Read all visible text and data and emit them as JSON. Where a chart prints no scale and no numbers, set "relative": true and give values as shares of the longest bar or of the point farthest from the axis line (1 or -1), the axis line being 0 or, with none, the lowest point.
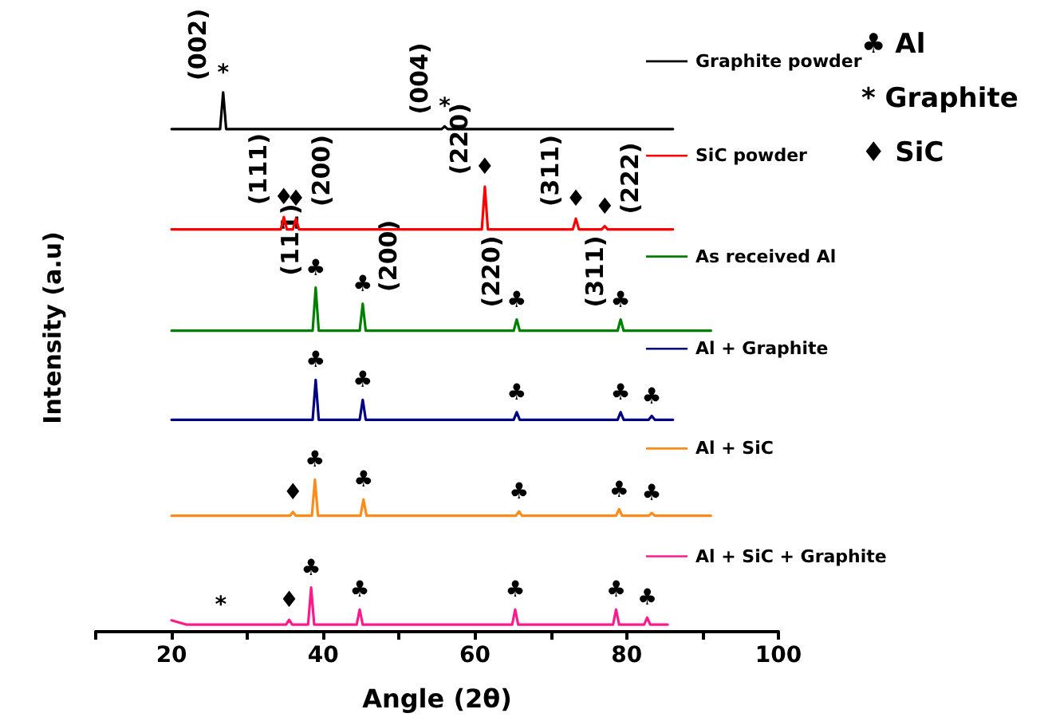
{
  "chart_data": {
    "type": "line",
    "relative": true,
    "xlabel": "Angle (2θ)",
    "ylabel": "Intensity (a.u)",
    "xlim": [
      10,
      100
    ],
    "xticks": [
      {
        "value": 10,
        "label": null
      },
      20,
      {
        "value": 30,
        "label": null
      },
      40,
      {
        "value": 50,
        "label": null
      },
      60,
      {
        "value": 70,
        "label": null
      },
      80,
      {
        "value": 90,
        "label": null
      },
      100
    ],
    "tick_labels": "x",
    "legend": "right",
    "series": [
      {
        "name": "Graphite powder",
        "color": "#000000",
        "x": [
          20,
          26.4,
          26.8,
          27.2,
          55.6,
          56.0,
          56.4,
          86.1
        ],
        "values": [
          0.932,
          0.932,
          1,
          0.932,
          0.932,
          0.937,
          0.932,
          0.932
        ]
      },
      {
        "name": "SiC powder",
        "color": "#ff0000",
        "x": [
          20,
          34.4,
          34.8,
          35.2,
          36.0,
          36.4,
          36.8,
          60.9,
          61.3,
          61.7,
          72.9,
          73.3,
          73.7,
          76.7,
          77.1,
          77.5,
          86.1
        ],
        "values": [
          0.746,
          0.746,
          0.769,
          0.746,
          0.746,
          0.766,
          0.746,
          0.746,
          0.825,
          0.746,
          0.746,
          0.766,
          0.746,
          0.746,
          0.752,
          0.746,
          0.746
        ]
      },
      {
        "name": "As received Al",
        "color": "#008000",
        "x": [
          20,
          38.6,
          39.0,
          39.4,
          44.8,
          45.2,
          45.6,
          65.1,
          65.5,
          65.9,
          78.8,
          79.2,
          79.6,
          91.1
        ],
        "values": [
          0.558,
          0.558,
          0.638,
          0.558,
          0.558,
          0.608,
          0.558,
          0.558,
          0.579,
          0.558,
          0.558,
          0.579,
          0.558,
          0.558
        ]
      },
      {
        "name": "Al + Graphite",
        "color": "#000080",
        "x": [
          20,
          38.6,
          39.0,
          39.4,
          44.8,
          45.2,
          45.6,
          65.1,
          65.5,
          65.9,
          78.8,
          79.2,
          79.6,
          82.9,
          83.3,
          83.7,
          86.1
        ],
        "values": [
          0.393,
          0.393,
          0.467,
          0.393,
          0.393,
          0.43,
          0.393,
          0.393,
          0.407,
          0.393,
          0.393,
          0.407,
          0.393,
          0.393,
          0.4,
          0.393,
          0.393
        ]
      },
      {
        "name": "Al + SiC",
        "color": "#ff8c1a",
        "x": [
          20,
          35.6,
          36.0,
          36.4,
          38.5,
          38.9,
          39.3,
          44.9,
          45.3,
          45.7,
          65.4,
          65.8,
          66.2,
          78.6,
          79.0,
          79.4,
          82.9,
          83.3,
          83.7,
          91.1
        ],
        "values": [
          0.215,
          0.215,
          0.222,
          0.215,
          0.215,
          0.282,
          0.215,
          0.215,
          0.245,
          0.215,
          0.215,
          0.223,
          0.215,
          0.215,
          0.227,
          0.215,
          0.215,
          0.22,
          0.215,
          0.215
        ]
      },
      {
        "name": "Al + SiC + Graphite",
        "color": "#ff1a8c",
        "x": [
          20,
          22,
          35.1,
          35.5,
          35.9,
          38.0,
          38.4,
          38.8,
          44.4,
          44.8,
          45.2,
          64.9,
          65.3,
          65.7,
          78.2,
          78.6,
          79.0,
          82.3,
          82.7,
          83.1,
          85.4
        ],
        "values": [
          0.021,
          0.013,
          0.013,
          0.022,
          0.013,
          0.013,
          0.082,
          0.013,
          0.013,
          0.041,
          0.013,
          0.013,
          0.041,
          0.013,
          0.013,
          0.041,
          0.013,
          0.013,
          0.026,
          0.013,
          0.013
        ]
      }
    ],
    "annotations": [
      "♣ Al",
      "* Graphite",
      "♦ SiC",
      {
        "text": "*",
        "x": 26.8,
        "y": 1
      },
      {
        "text": "(002)",
        "x": 26.8,
        "y": 1
      },
      {
        "text": "*",
        "x": 56.0,
        "y": 0.937
      },
      {
        "text": "(004)",
        "x": 56.0,
        "y": 0.937
      },
      {
        "text": "♦",
        "x": 34.8,
        "y": 0.769
      },
      {
        "text": "(111)",
        "x": 34.8,
        "y": 0.769
      },
      {
        "text": "♦",
        "x": 36.4,
        "y": 0.766
      },
      {
        "text": "(200)",
        "x": 36.4,
        "y": 0.766
      },
      {
        "text": "♦",
        "x": 61.3,
        "y": 0.825
      },
      {
        "text": "(220)",
        "x": 61.3,
        "y": 0.825
      },
      {
        "text": "♦",
        "x": 73.3,
        "y": 0.766
      },
      {
        "text": "(311)",
        "x": 73.3,
        "y": 0.766
      },
      {
        "text": "♦",
        "x": 77.1,
        "y": 0.752
      },
      {
        "text": "(222)",
        "x": 77.1,
        "y": 0.752
      },
      {
        "text": "♣",
        "x": 39.0,
        "y": 0.638
      },
      {
        "text": "(111)",
        "x": 39.0,
        "y": 0.638
      },
      {
        "text": "♣",
        "x": 45.2,
        "y": 0.608
      },
      {
        "text": "(200)",
        "x": 45.2,
        "y": 0.608
      },
      {
        "text": "♣",
        "x": 65.5,
        "y": 0.579
      },
      {
        "text": "(220)",
        "x": 65.5,
        "y": 0.579
      },
      {
        "text": "♣",
        "x": 79.2,
        "y": 0.579
      },
      {
        "text": "(311)",
        "x": 79.2,
        "y": 0.579
      },
      {
        "text": "♣",
        "x": 39.0,
        "y": 0.467
      },
      {
        "text": "♣",
        "x": 45.2,
        "y": 0.43
      },
      {
        "text": "♣",
        "x": 65.5,
        "y": 0.407
      },
      {
        "text": "♣",
        "x": 79.2,
        "y": 0.407
      },
      {
        "text": "♣",
        "x": 83.3,
        "y": 0.4
      },
      {
        "text": "♦",
        "x": 36.0,
        "y": 0.222
      },
      {
        "text": "♣",
        "x": 38.9,
        "y": 0.282
      },
      {
        "text": "♣",
        "x": 45.3,
        "y": 0.245
      },
      {
        "text": "♣",
        "x": 65.8,
        "y": 0.223
      },
      {
        "text": "♣",
        "x": 79.0,
        "y": 0.227
      },
      {
        "text": "♣",
        "x": 83.3,
        "y": 0.22
      },
      {
        "text": "*",
        "x": 26.5,
        "y": 0.013
      },
      {
        "text": "♦",
        "x": 35.5,
        "y": 0.022
      },
      {
        "text": "♣",
        "x": 38.4,
        "y": 0.082
      },
      {
        "text": "♣",
        "x": 44.8,
        "y": 0.041
      },
      {
        "text": "♣",
        "x": 65.3,
        "y": 0.041
      },
      {
        "text": "♣",
        "x": 78.6,
        "y": 0.041
      },
      {
        "text": "♣",
        "x": 82.7,
        "y": 0.026
      }
    ]
  }
}
